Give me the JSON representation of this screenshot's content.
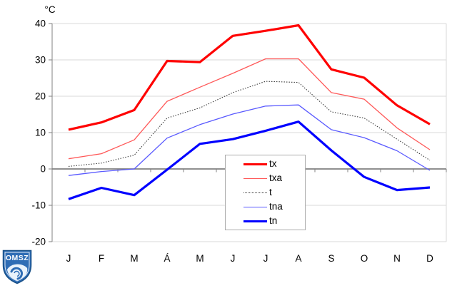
{
  "chart_data": {
    "type": "line",
    "title": "",
    "ylabel": "°C",
    "xlabel": "",
    "categories": [
      "J",
      "F",
      "M",
      "Á",
      "M",
      "J",
      "J",
      "A",
      "S",
      "O",
      "N",
      "D"
    ],
    "y_ticks": [
      40,
      30,
      20,
      10,
      0,
      -10,
      -20
    ],
    "ylim": [
      -20,
      40
    ],
    "grid": true,
    "legend_position": "inside-center-right",
    "colors": {
      "grid": "#d9d9d9",
      "axis": "#808080",
      "text": "#000000"
    },
    "series": [
      {
        "name": "tx",
        "color": "#ff0000",
        "line_width": 3.2,
        "line_style": "solid",
        "values": [
          10.8,
          12.8,
          16.2,
          29.7,
          29.4,
          36.6,
          38.0,
          39.5,
          27.4,
          25.1,
          17.5,
          12.3
        ]
      },
      {
        "name": "txa",
        "color": "#ff5959",
        "line_width": 1.3,
        "line_style": "solid",
        "values": [
          2.8,
          4.2,
          8.0,
          18.6,
          22.5,
          26.3,
          30.3,
          30.3,
          21.0,
          19.2,
          11.3,
          5.3
        ]
      },
      {
        "name": "t",
        "color": "#3a3a3a",
        "line_width": 1.1,
        "line_style": "dotted",
        "values": [
          0.7,
          1.6,
          3.8,
          14.0,
          16.8,
          21.0,
          24.1,
          23.8,
          15.7,
          14.0,
          8.2,
          2.4
        ]
      },
      {
        "name": "tna",
        "color": "#5959ff",
        "line_width": 1.3,
        "line_style": "solid",
        "values": [
          -1.8,
          -0.7,
          0.0,
          8.5,
          12.2,
          15.1,
          17.3,
          17.6,
          10.8,
          8.6,
          5.0,
          -0.4
        ]
      },
      {
        "name": "tn",
        "color": "#0000ff",
        "line_width": 3.2,
        "line_style": "solid",
        "values": [
          -8.3,
          -5.2,
          -7.2,
          -0.2,
          6.9,
          8.2,
          10.5,
          13.0,
          5.1,
          -2.2,
          -5.8,
          -5.1
        ]
      }
    ]
  },
  "logo": {
    "text": "OMSZ",
    "shield_color": "#2f6db5",
    "shield_border": "#174f87"
  }
}
